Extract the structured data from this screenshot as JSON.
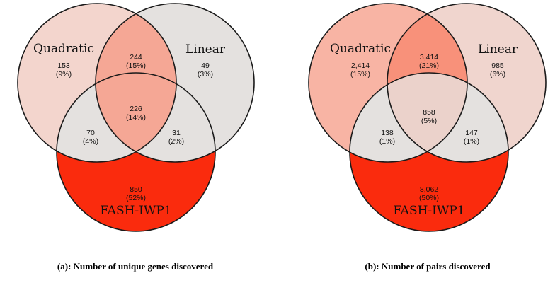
{
  "colors": {
    "background": "#ffffff",
    "outline": "#1a1a1a",
    "light_gray": "#e4e1df"
  },
  "diagrams": [
    {
      "caption": "(a): Number of unique genes discovered",
      "sets": {
        "quadratic": {
          "label": "Quadratic"
        },
        "linear": {
          "label": "Linear"
        },
        "fash": {
          "label": "FASH-IWP1"
        }
      },
      "regions": {
        "q_only": {
          "count": "153",
          "pct": "(9%)",
          "color": "#f3d5cd"
        },
        "l_only": {
          "count": "49",
          "pct": "(3%)",
          "color": "#e4e1df"
        },
        "f_only": {
          "count": "850",
          "pct": "(52%)",
          "color": "#fa2b0d"
        },
        "q_l": {
          "count": "244",
          "pct": "(15%)",
          "color": "#f5a795"
        },
        "q_f": {
          "count": "70",
          "pct": "(4%)",
          "color": "#e4e1df"
        },
        "l_f": {
          "count": "31",
          "pct": "(2%)",
          "color": "#e4e1df"
        },
        "q_l_f": {
          "count": "226",
          "pct": "(14%)",
          "color": "#f5a795"
        }
      }
    },
    {
      "caption": "(b): Number of pairs discovered",
      "sets": {
        "quadratic": {
          "label": "Quadratic"
        },
        "linear": {
          "label": "Linear"
        },
        "fash": {
          "label": "FASH-IWP1"
        }
      },
      "regions": {
        "q_only": {
          "count": "2,414",
          "pct": "(15%)",
          "color": "#f8b4a4"
        },
        "l_only": {
          "count": "985",
          "pct": "(6%)",
          "color": "#f0d5ce"
        },
        "f_only": {
          "count": "8,062",
          "pct": "(50%)",
          "color": "#fa2b0d"
        },
        "q_l": {
          "count": "3,414",
          "pct": "(21%)",
          "color": "#f8917a"
        },
        "q_f": {
          "count": "138",
          "pct": "(1%)",
          "color": "#e4e1df"
        },
        "l_f": {
          "count": "147",
          "pct": "(1%)",
          "color": "#e4e1df"
        },
        "q_l_f": {
          "count": "858",
          "pct": "(5%)",
          "color": "#ebd2cb"
        }
      }
    }
  ]
}
